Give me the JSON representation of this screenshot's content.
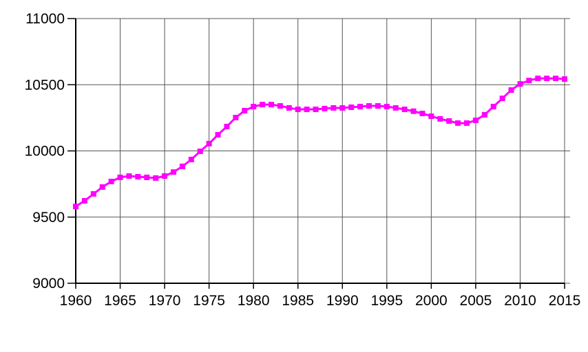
{
  "chart_data": {
    "type": "line",
    "x": [
      1960,
      1961,
      1962,
      1963,
      1964,
      1965,
      1966,
      1967,
      1968,
      1969,
      1970,
      1971,
      1972,
      1973,
      1974,
      1975,
      1976,
      1977,
      1978,
      1979,
      1980,
      1981,
      1982,
      1983,
      1984,
      1985,
      1986,
      1987,
      1988,
      1989,
      1990,
      1991,
      1992,
      1993,
      1994,
      1995,
      1996,
      1997,
      1998,
      1999,
      2000,
      2001,
      2002,
      2003,
      2004,
      2005,
      2006,
      2007,
      2008,
      2009,
      2010,
      2011,
      2012,
      2013,
      2014,
      2015
    ],
    "values": [
      9580,
      9623,
      9675,
      9727,
      9769,
      9800,
      9810,
      9805,
      9800,
      9795,
      9810,
      9840,
      9883,
      9935,
      9997,
      10055,
      10122,
      10184,
      10252,
      10304,
      10335,
      10350,
      10350,
      10340,
      10325,
      10314,
      10314,
      10314,
      10320,
      10325,
      10325,
      10330,
      10335,
      10340,
      10340,
      10335,
      10325,
      10314,
      10300,
      10283,
      10262,
      10242,
      10226,
      10210,
      10210,
      10231,
      10273,
      10335,
      10397,
      10460,
      10506,
      10532,
      10548,
      10548,
      10548,
      10543
    ],
    "color": "#ff00ff",
    "xlim": [
      1960,
      2015
    ],
    "xticks": [
      1960,
      1965,
      1970,
      1975,
      1980,
      1985,
      1990,
      1995,
      2000,
      2005,
      2010,
      2015
    ],
    "ylim": [
      9000,
      11000
    ],
    "yticks": [
      9000,
      9500,
      10000,
      10500,
      11000
    ],
    "grid": true
  }
}
